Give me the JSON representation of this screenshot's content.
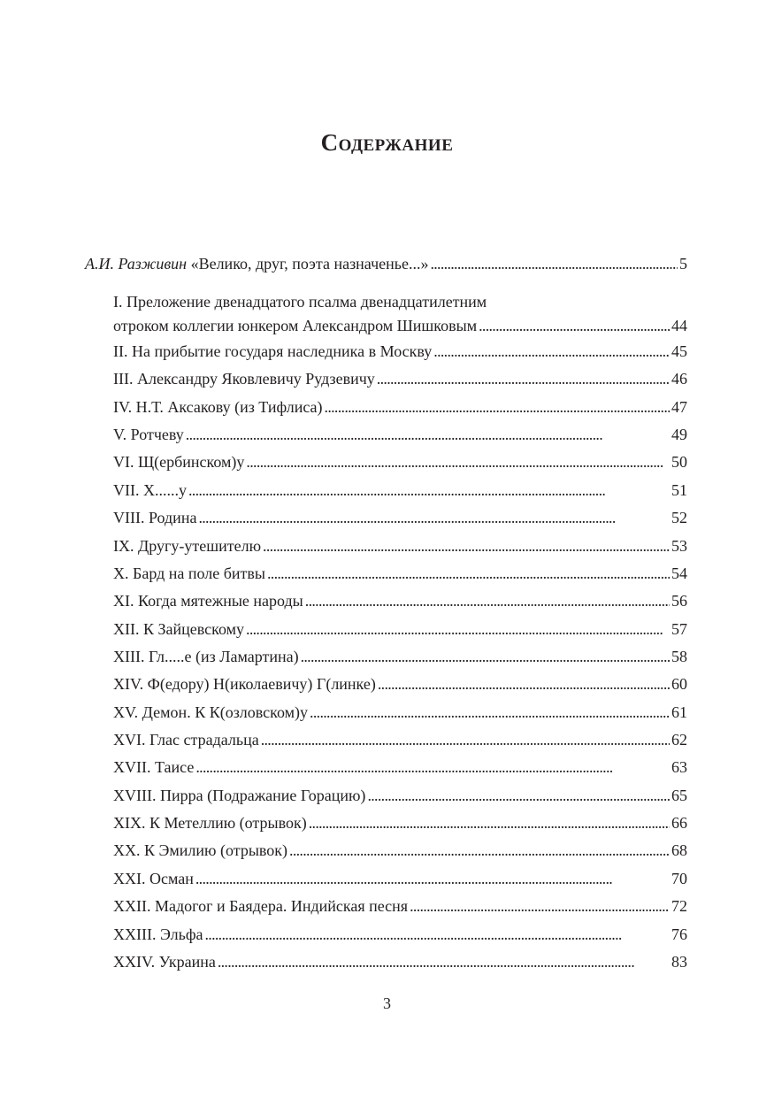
{
  "title": "Содержание",
  "intro": {
    "author": "А.И. Разживин",
    "title": "«Велико, друг, поэта назначенье...»",
    "page": "5"
  },
  "first_item": {
    "line1": "I. Преложение двенадцатого псалма двенадцатилетним",
    "line2": "отроком коллегии юнкером Александром Шишковым",
    "page": "44"
  },
  "items": [
    {
      "label": "II. На прибытие государя наследника в Москву",
      "page": "45"
    },
    {
      "label": "III. Александру Яковлевичу Рудзевичу",
      "page": "46"
    },
    {
      "label": "IV. Н.Т. Аксакову (из Тифлиса)",
      "page": "47"
    },
    {
      "label": "V. Ротчеву",
      "page": "49"
    },
    {
      "label": "VI. Щ(ербинском)у",
      "page": "50"
    },
    {
      "label": "VII. Х......у",
      "page": "51"
    },
    {
      "label": "VIII. Родина",
      "page": "52"
    },
    {
      "label": "IX. Другу-утешителю",
      "page": "53"
    },
    {
      "label": "X. Бард на поле битвы",
      "page": "54"
    },
    {
      "label": "XI. Когда мятежные народы",
      "page": "56"
    },
    {
      "label": "XII. К Зайцевскому",
      "page": "57"
    },
    {
      "label": "XIII. Гл.....е (из Ламартина)",
      "page": "58"
    },
    {
      "label": "XIV. Ф(едору) Н(иколаевичу) Г(линке)",
      "page": "60"
    },
    {
      "label": "XV. Демон. К К(озловском)у",
      "page": "61"
    },
    {
      "label": "XVI. Глас страдальца",
      "page": "62"
    },
    {
      "label": "XVII. Таисе",
      "page": "63"
    },
    {
      "label": "XVIII. Пирра (Подражание Горацию)",
      "page": "65"
    },
    {
      "label": "XIX. К Метеллию (отрывок)",
      "page": "66"
    },
    {
      "label": "XX. К Эмилию (отрывок)",
      "page": "68"
    },
    {
      "label": "XXI. Осман",
      "page": "70"
    },
    {
      "label": "XXII. Мадогог и Баядера. Индийская песня",
      "page": "72"
    },
    {
      "label": "XXIII. Эльфа",
      "page": "76"
    },
    {
      "label": "XXIV. Украина",
      "page": "83"
    }
  ],
  "page_number": "3"
}
